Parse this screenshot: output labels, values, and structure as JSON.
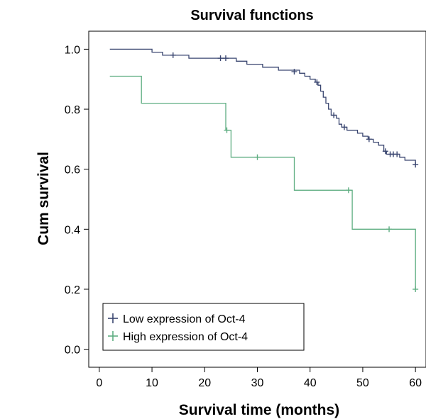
{
  "chart_data": {
    "type": "line",
    "title": "Survival functions",
    "xlabel": "Survival time (months)",
    "ylabel": "Cum survival",
    "xlim": [
      -2,
      62
    ],
    "ylim": [
      -0.06,
      1.06
    ],
    "x_ticks": [
      0,
      10,
      20,
      30,
      40,
      50,
      60
    ],
    "y_ticks": [
      0.0,
      0.2,
      0.4,
      0.6,
      0.8,
      1.0
    ],
    "x_tick_labels": [
      "0",
      "10",
      "20",
      "30",
      "40",
      "50",
      "60"
    ],
    "y_tick_labels": [
      "0.0",
      "0.2",
      "0.4",
      "0.6",
      "0.8",
      "1.0"
    ],
    "grid": false,
    "legend_position": "bottom-left",
    "series": [
      {
        "name": "Low expression of Oct-4",
        "color": "#3a4670",
        "steps": [
          [
            2,
            1.0
          ],
          [
            10,
            0.99
          ],
          [
            12,
            0.98
          ],
          [
            17,
            0.97
          ],
          [
            26,
            0.96
          ],
          [
            28,
            0.95
          ],
          [
            31,
            0.94
          ],
          [
            34,
            0.93
          ],
          [
            38,
            0.92
          ],
          [
            39,
            0.91
          ],
          [
            40,
            0.9
          ],
          [
            41,
            0.89
          ],
          [
            41.5,
            0.88
          ],
          [
            42,
            0.86
          ],
          [
            42.5,
            0.84
          ],
          [
            43,
            0.82
          ],
          [
            43.5,
            0.8
          ],
          [
            44,
            0.78
          ],
          [
            45,
            0.77
          ],
          [
            45.5,
            0.75
          ],
          [
            46,
            0.74
          ],
          [
            47,
            0.73
          ],
          [
            49,
            0.72
          ],
          [
            50,
            0.71
          ],
          [
            51,
            0.7
          ],
          [
            52,
            0.69
          ],
          [
            53,
            0.68
          ],
          [
            54,
            0.66
          ],
          [
            54.5,
            0.65
          ],
          [
            57,
            0.64
          ],
          [
            58,
            0.63
          ],
          [
            60,
            0.615
          ]
        ],
        "censored": [
          [
            14,
            0.98
          ],
          [
            23,
            0.97
          ],
          [
            24,
            0.97
          ],
          [
            37,
            0.925
          ],
          [
            41.3,
            0.89
          ],
          [
            44.5,
            0.78
          ],
          [
            46.5,
            0.74
          ],
          [
            51.2,
            0.7
          ],
          [
            54.3,
            0.66
          ],
          [
            55.2,
            0.65
          ],
          [
            55.8,
            0.65
          ],
          [
            56.5,
            0.65
          ],
          [
            60,
            0.615
          ]
        ]
      },
      {
        "name": "High expression of Oct-4",
        "color": "#5fae82",
        "steps": [
          [
            2,
            0.91
          ],
          [
            8,
            0.82
          ],
          [
            24,
            0.73
          ],
          [
            25,
            0.64
          ],
          [
            37,
            0.53
          ],
          [
            48,
            0.4
          ],
          [
            60,
            0.2
          ]
        ],
        "censored": [
          [
            24.2,
            0.73
          ],
          [
            30,
            0.64
          ],
          [
            47.3,
            0.53
          ],
          [
            55,
            0.4
          ],
          [
            60,
            0.2
          ]
        ]
      }
    ]
  }
}
